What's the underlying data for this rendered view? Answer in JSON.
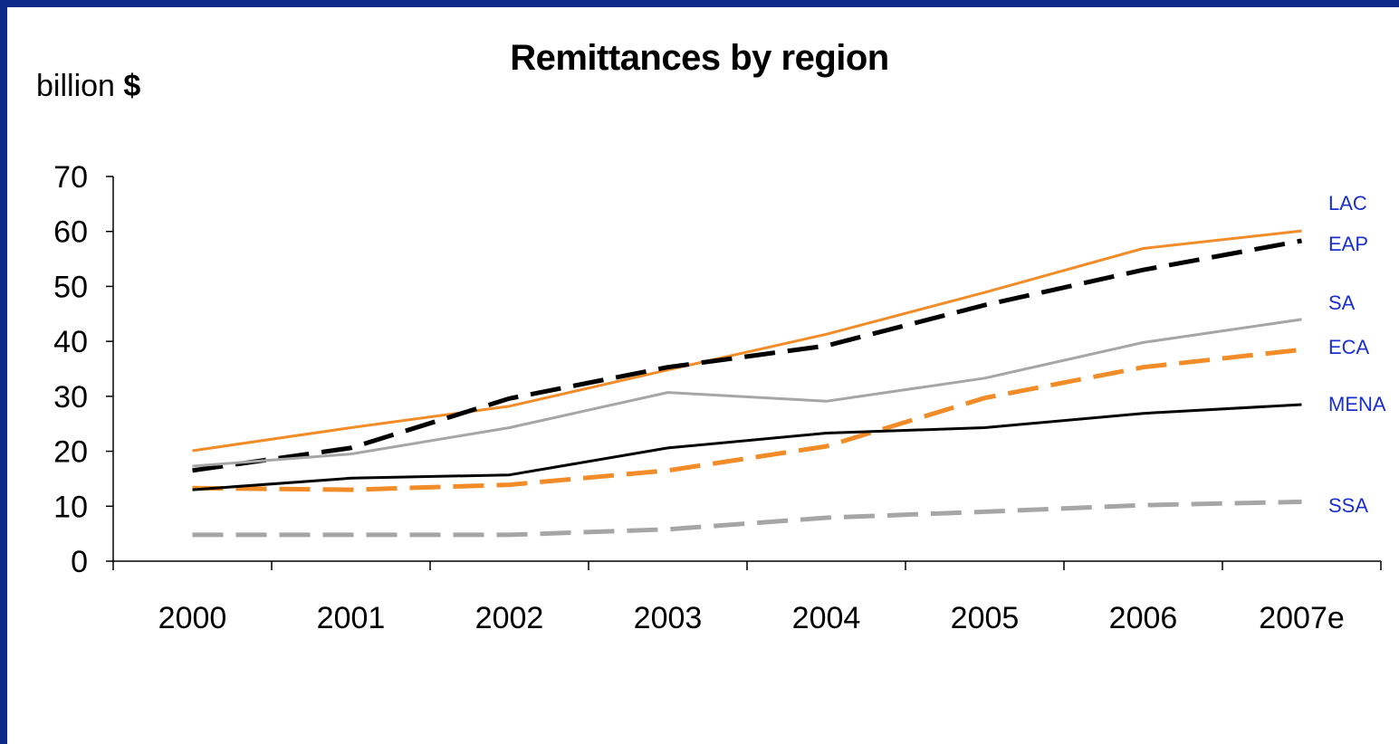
{
  "chart_data": {
    "type": "line",
    "title": "Remittances by region",
    "ylabel": "billion",
    "ylabel_unit": "$",
    "xlabel": "",
    "categories": [
      "2000",
      "2001",
      "2002",
      "2003",
      "2004",
      "2005",
      "2006",
      "2007e"
    ],
    "ylim": [
      0,
      70
    ],
    "yticks": [
      0,
      10,
      20,
      30,
      40,
      50,
      60,
      70
    ],
    "grid": false,
    "legend": "line-end labels, right side",
    "series": [
      {
        "name": "LAC",
        "color": "#f28c28",
        "dash": "solid",
        "values": [
          20.1,
          24.3,
          28.2,
          34.8,
          41.3,
          48.9,
          56.9,
          60.1
        ]
      },
      {
        "name": "EAP",
        "color": "#000000",
        "dash": "dashed",
        "values": [
          16.5,
          20.6,
          29.6,
          35.3,
          39.2,
          46.6,
          53.0,
          58.3
        ]
      },
      {
        "name": "SA",
        "color": "#a6a6a6",
        "dash": "solid",
        "values": [
          17.3,
          19.5,
          24.3,
          30.7,
          29.1,
          33.3,
          39.8,
          44.0
        ]
      },
      {
        "name": "ECA",
        "color": "#f28c28",
        "dash": "dashed",
        "values": [
          13.3,
          13.0,
          13.9,
          16.5,
          20.9,
          29.7,
          35.3,
          38.5
        ]
      },
      {
        "name": "MENA",
        "color": "#000000",
        "dash": "solid",
        "values": [
          13.0,
          15.1,
          15.7,
          20.6,
          23.3,
          24.3,
          26.9,
          28.5
        ]
      },
      {
        "name": "SSA",
        "color": "#a6a6a6",
        "dash": "dashed",
        "values": [
          4.8,
          4.8,
          4.8,
          5.8,
          7.9,
          9.0,
          10.2,
          10.8
        ]
      }
    ],
    "label_color": "#1a2fd0"
  }
}
